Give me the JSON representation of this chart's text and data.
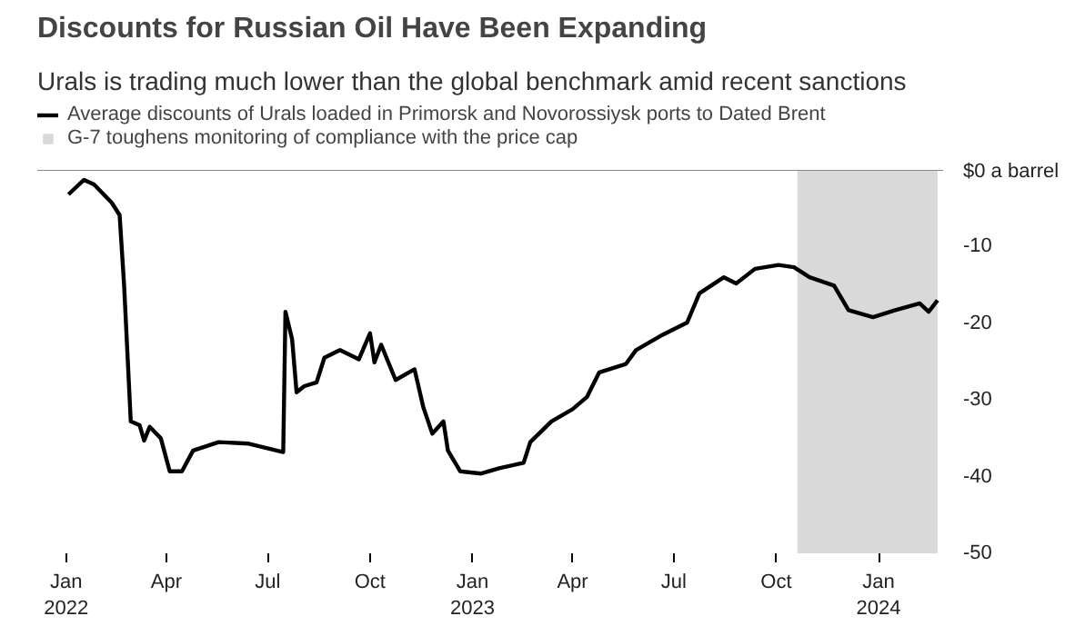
{
  "chart_data": {
    "type": "line",
    "title": "Discounts for Russian Oil Have Been Expanding",
    "subtitle": "Urals is trading much lower than the global benchmark amid recent sanctions",
    "x": [
      "2022-01-03",
      "2022-01-17",
      "2022-01-26",
      "2022-02-11",
      "2022-02-18",
      "2022-02-22",
      "2022-02-28",
      "2022-03-08",
      "2022-03-12",
      "2022-03-17",
      "2022-03-27",
      "2022-04-04",
      "2022-04-15",
      "2022-04-25",
      "2022-05-18",
      "2022-06-14",
      "2022-07-15",
      "2022-07-17",
      "2022-07-23",
      "2022-07-27",
      "2022-08-03",
      "2022-08-14",
      "2022-08-21",
      "2022-09-04",
      "2022-09-21",
      "2022-10-01",
      "2022-10-05",
      "2022-10-11",
      "2022-10-24",
      "2022-11-10",
      "2022-11-18",
      "2022-11-26",
      "2022-12-06",
      "2022-12-10",
      "2022-12-21",
      "2023-01-09",
      "2023-01-25",
      "2023-02-16",
      "2023-02-22",
      "2023-03-13",
      "2023-04-01",
      "2023-04-14",
      "2023-04-25",
      "2023-05-19",
      "2023-05-28",
      "2023-06-21",
      "2023-07-13",
      "2023-07-24",
      "2023-08-15",
      "2023-08-26",
      "2023-09-12",
      "2023-10-03",
      "2023-10-17",
      "2023-10-31",
      "2023-11-22",
      "2023-12-05",
      "2023-12-27",
      "2024-01-16",
      "2024-02-07",
      "2024-02-15",
      "2024-02-23"
    ],
    "series": [
      {
        "name": "Average discounts of Urals loaded in Primorsk and Novorossiysk ports to Dated Brent",
        "color": "#000000",
        "values": [
          -3.2,
          -1.3,
          -1.9,
          -4.3,
          -5.9,
          -15,
          -32.8,
          -33.3,
          -35.3,
          -33.5,
          -35,
          -39.3,
          -39.3,
          -36.6,
          -35.5,
          -35.7,
          -36.8,
          -18.5,
          -22.1,
          -29,
          -28.2,
          -27.7,
          -24.5,
          -23.5,
          -24.7,
          -21.3,
          -25.1,
          -22.8,
          -27.4,
          -26,
          -31,
          -34.4,
          -32.8,
          -36.6,
          -39.3,
          -39.6,
          -38.9,
          -38.2,
          -35.5,
          -32.8,
          -31.2,
          -29.6,
          -26.4,
          -25.3,
          -23.5,
          -21.5,
          -19.9,
          -16.1,
          -14,
          -14.8,
          -12.9,
          -12.4,
          -12.7,
          -14,
          -15.1,
          -18.3,
          -19.2,
          -18.3,
          -17.4,
          -18.5,
          -17
        ]
      }
    ],
    "bands": [
      {
        "axis": "x",
        "from": "2023-10-20",
        "to": "2024-02-23",
        "label": "G-7 toughens monitoring of compliance with the price cap",
        "color": "#d9d9d9"
      }
    ],
    "xlim": [
      "2021-12-06",
      "2024-02-28"
    ],
    "xticks": [
      {
        "value": "2022-01-01",
        "label": "Jan\n2022"
      },
      {
        "value": "2022-04-01",
        "label": "Apr"
      },
      {
        "value": "2022-07-01",
        "label": "Jul"
      },
      {
        "value": "2022-10-01",
        "label": "Oct"
      },
      {
        "value": "2023-01-01",
        "label": "Jan\n2023"
      },
      {
        "value": "2023-04-01",
        "label": "Apr"
      },
      {
        "value": "2023-07-01",
        "label": "Jul"
      },
      {
        "value": "2023-10-01",
        "label": "Oct"
      },
      {
        "value": "2024-01-01",
        "label": "Jan\n2024"
      }
    ],
    "ylim": [
      -50,
      0
    ],
    "yticks": [
      {
        "value": 0,
        "label": "$0 a barrel"
      },
      -10,
      -20,
      -30,
      -40,
      -50
    ],
    "grid": false,
    "legend": "top left",
    "line_style": "solid",
    "marker": "none"
  }
}
